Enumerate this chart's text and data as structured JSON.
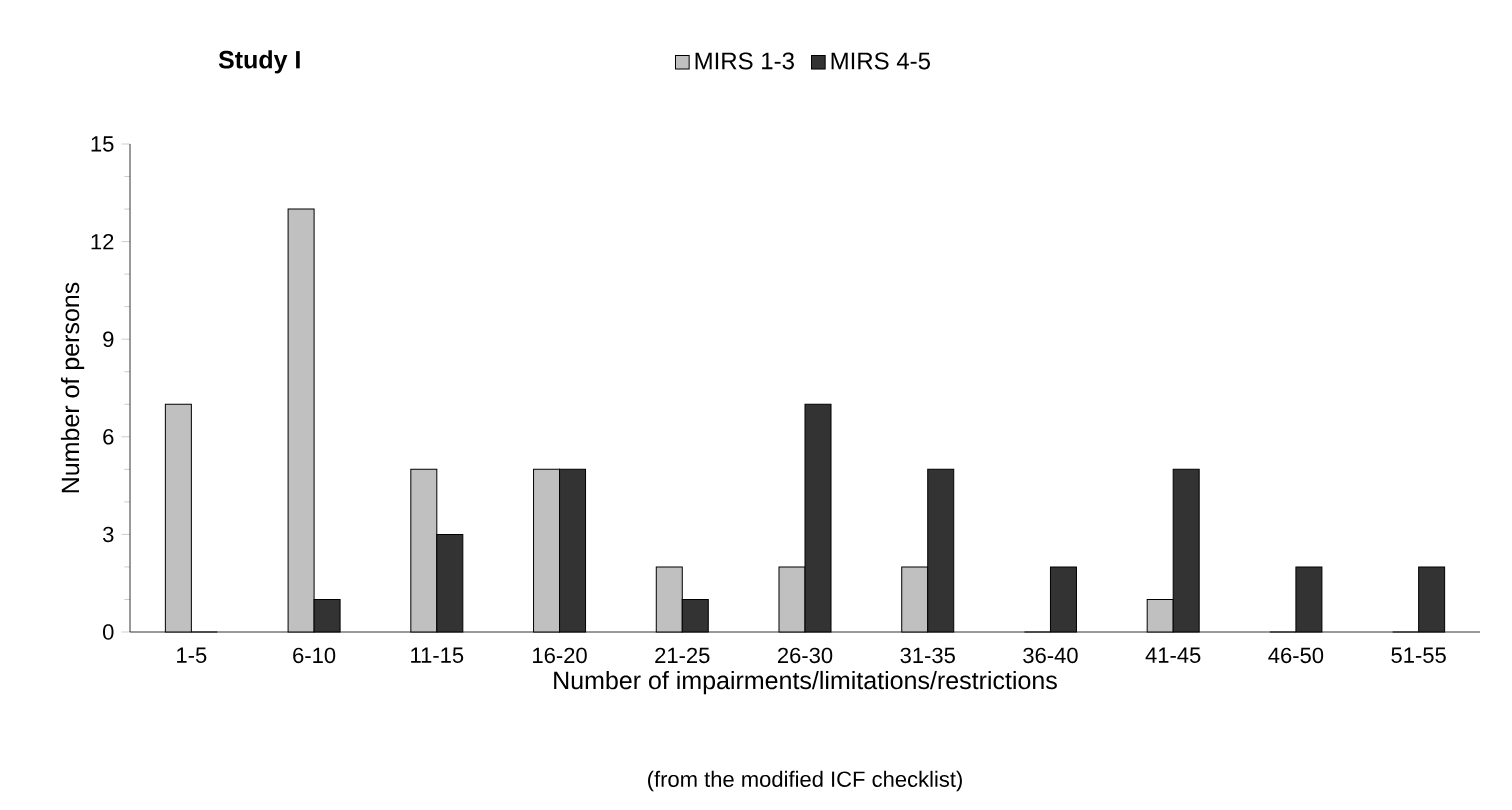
{
  "chart_data": {
    "type": "bar",
    "title": "Study I",
    "categories": [
      "1-5",
      "6-10",
      "11-15",
      "16-20",
      "21-25",
      "26-30",
      "31-35",
      "36-40",
      "41-45",
      "46-50",
      "51-55"
    ],
    "series": [
      {
        "name": "MIRS 1-3",
        "color": "#c0c0c0",
        "values": [
          7,
          13,
          5,
          5,
          2,
          2,
          2,
          0,
          1,
          0,
          0
        ]
      },
      {
        "name": "MIRS 4-5",
        "color": "#333333",
        "values": [
          0,
          1,
          3,
          5,
          1,
          7,
          5,
          2,
          5,
          2,
          2
        ]
      }
    ],
    "xlabel": "Number of impairments/limitations/restrictions",
    "ylabel": "Number of persons",
    "annotations": [
      "(from the modified ICF checklist)"
    ],
    "ylim": [
      0,
      15
    ],
    "yticks": [
      0,
      3,
      6,
      9,
      12,
      15
    ],
    "grid": false,
    "legend": "top"
  }
}
